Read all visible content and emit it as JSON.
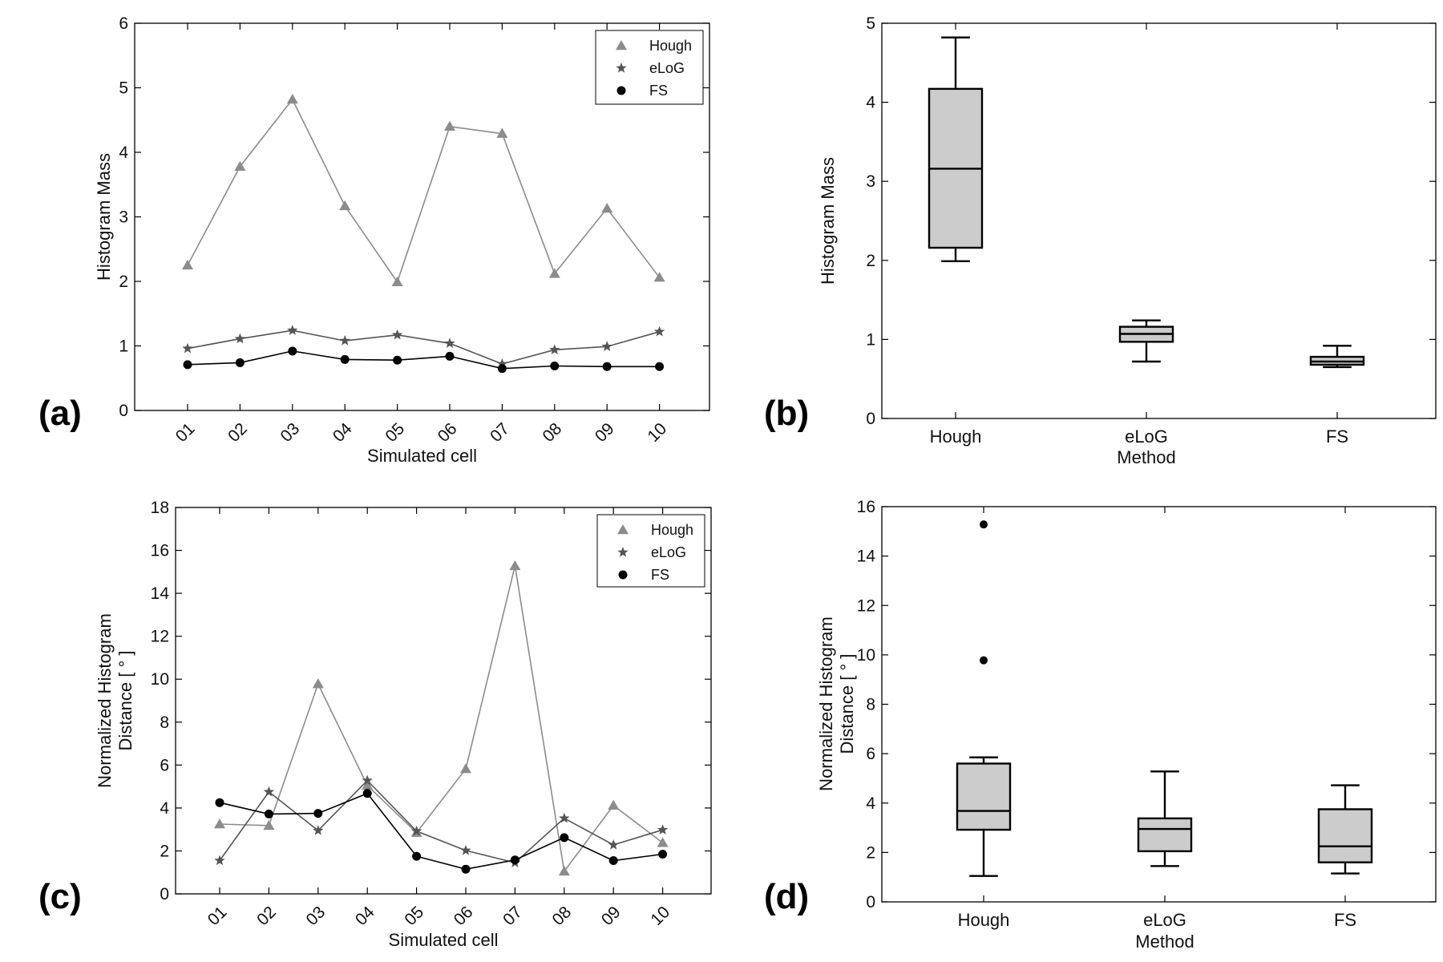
{
  "colors": {
    "hough": "#8c8c8c",
    "elog": "#555555",
    "fs": "#000000",
    "box_fill": "#cccccc"
  },
  "chart_data": [
    {
      "panel": "(a)",
      "type": "line",
      "xlabel": "Simulated cell",
      "ylabel": "Histogram Mass",
      "categories": [
        "01",
        "02",
        "03",
        "04",
        "05",
        "06",
        "07",
        "08",
        "09",
        "10"
      ],
      "ylim": [
        0,
        6
      ],
      "yticks": [
        "0",
        "1",
        "2",
        "3",
        "4",
        "5",
        "6"
      ],
      "legend": "top-right",
      "series": [
        {
          "name": "Hough",
          "marker": "triangle",
          "values": [
            2.25,
            3.78,
            4.82,
            3.17,
            1.99,
            4.4,
            4.29,
            2.12,
            3.13,
            2.06
          ]
        },
        {
          "name": "eLoG",
          "marker": "star",
          "values": [
            0.96,
            1.11,
            1.24,
            1.08,
            1.17,
            1.04,
            0.72,
            0.94,
            0.99,
            1.22
          ]
        },
        {
          "name": "FS",
          "marker": "circle",
          "values": [
            0.71,
            0.74,
            0.92,
            0.79,
            0.78,
            0.84,
            0.65,
            0.69,
            0.68,
            0.68
          ]
        }
      ]
    },
    {
      "panel": "(b)",
      "type": "box",
      "xlabel": "Method",
      "ylabel": "Histogram Mass",
      "categories": [
        "Hough",
        "eLoG",
        "FS"
      ],
      "ylim": [
        0,
        5
      ],
      "yticks": [
        "0",
        "1",
        "2",
        "3",
        "4",
        "5"
      ],
      "boxes": [
        {
          "whisker_low": 1.99,
          "q1": 2.16,
          "median": 3.16,
          "q3": 4.17,
          "whisker_high": 4.82,
          "outliers": []
        },
        {
          "whisker_low": 0.72,
          "q1": 0.97,
          "median": 1.07,
          "q3": 1.16,
          "whisker_high": 1.24,
          "outliers": []
        },
        {
          "whisker_low": 0.65,
          "q1": 0.68,
          "median": 0.72,
          "q3": 0.78,
          "whisker_high": 0.92,
          "outliers": []
        }
      ]
    },
    {
      "panel": "(c)",
      "type": "line",
      "xlabel": "Simulated cell",
      "ylabel_lines": [
        "Normalized Histogram",
        "Distance [ ° ]"
      ],
      "categories": [
        "01",
        "02",
        "03",
        "04",
        "05",
        "06",
        "07",
        "08",
        "09",
        "10"
      ],
      "ylim": [
        0,
        18
      ],
      "yticks": [
        "0",
        "2",
        "4",
        "6",
        "8",
        "10",
        "12",
        "14",
        "16",
        "18"
      ],
      "legend": "top-right",
      "series": [
        {
          "name": "Hough",
          "marker": "triangle",
          "values": [
            3.25,
            3.18,
            9.78,
            5.05,
            2.85,
            5.82,
            15.28,
            1.05,
            4.12,
            2.38
          ]
        },
        {
          "name": "eLoG",
          "marker": "star",
          "values": [
            1.55,
            4.75,
            2.95,
            5.28,
            2.92,
            2.02,
            1.45,
            3.52,
            2.28,
            2.98
          ]
        },
        {
          "name": "FS",
          "marker": "circle",
          "values": [
            4.25,
            3.72,
            3.75,
            4.68,
            1.75,
            1.15,
            1.58,
            2.62,
            1.55,
            1.85
          ]
        }
      ]
    },
    {
      "panel": "(d)",
      "type": "box",
      "xlabel": "Method",
      "ylabel_lines": [
        "Normalized Histogram",
        "Distance [ ° ]"
      ],
      "categories": [
        "Hough",
        "eLoG",
        "FS"
      ],
      "ylim": [
        0,
        16
      ],
      "yticks": [
        "0",
        "2",
        "4",
        "6",
        "8",
        "10",
        "12",
        "14",
        "16"
      ],
      "boxes": [
        {
          "whisker_low": 1.05,
          "q1": 2.92,
          "median": 3.68,
          "q3": 5.6,
          "whisker_high": 5.85,
          "outliers": [
            15.28,
            9.78
          ]
        },
        {
          "whisker_low": 1.45,
          "q1": 2.05,
          "median": 2.95,
          "q3": 3.38,
          "whisker_high": 5.28,
          "outliers": []
        },
        {
          "whisker_low": 1.15,
          "q1": 1.6,
          "median": 2.25,
          "q3": 3.75,
          "whisker_high": 4.72,
          "outliers": []
        }
      ]
    }
  ]
}
